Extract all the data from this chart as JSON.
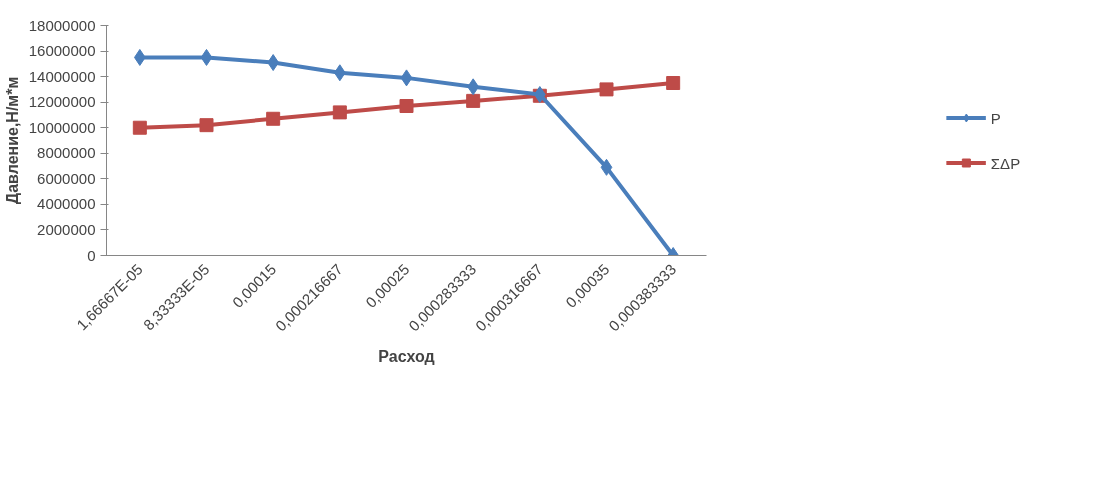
{
  "chart_data": {
    "type": "line",
    "categories": [
      "1,66667E-05",
      "8,33333E-05",
      "0,00015",
      "0,000216667",
      "0,00025",
      "0,000283333",
      "0,000316667",
      "0,00035",
      "0,000383333"
    ],
    "series": [
      {
        "name": "P",
        "color": "#4a7ebb",
        "marker": "diamond",
        "values": [
          15500000,
          15500000,
          15100000,
          14300000,
          13900000,
          13200000,
          12600000,
          6900000,
          0
        ]
      },
      {
        "name": "ΣΔP",
        "color": "#be4b48",
        "marker": "square",
        "values": [
          10000000,
          10200000,
          10700000,
          11200000,
          11700000,
          12100000,
          12500000,
          13000000,
          13500000
        ]
      }
    ],
    "xlabel": "Расход",
    "ylabel": "Давление,Н/м*м",
    "ylim": [
      0,
      18000000
    ],
    "yticks": [
      0,
      2000000,
      4000000,
      6000000,
      8000000,
      10000000,
      12000000,
      14000000,
      16000000,
      18000000
    ],
    "grid": false,
    "legend": "right",
    "line_style": "solid"
  }
}
